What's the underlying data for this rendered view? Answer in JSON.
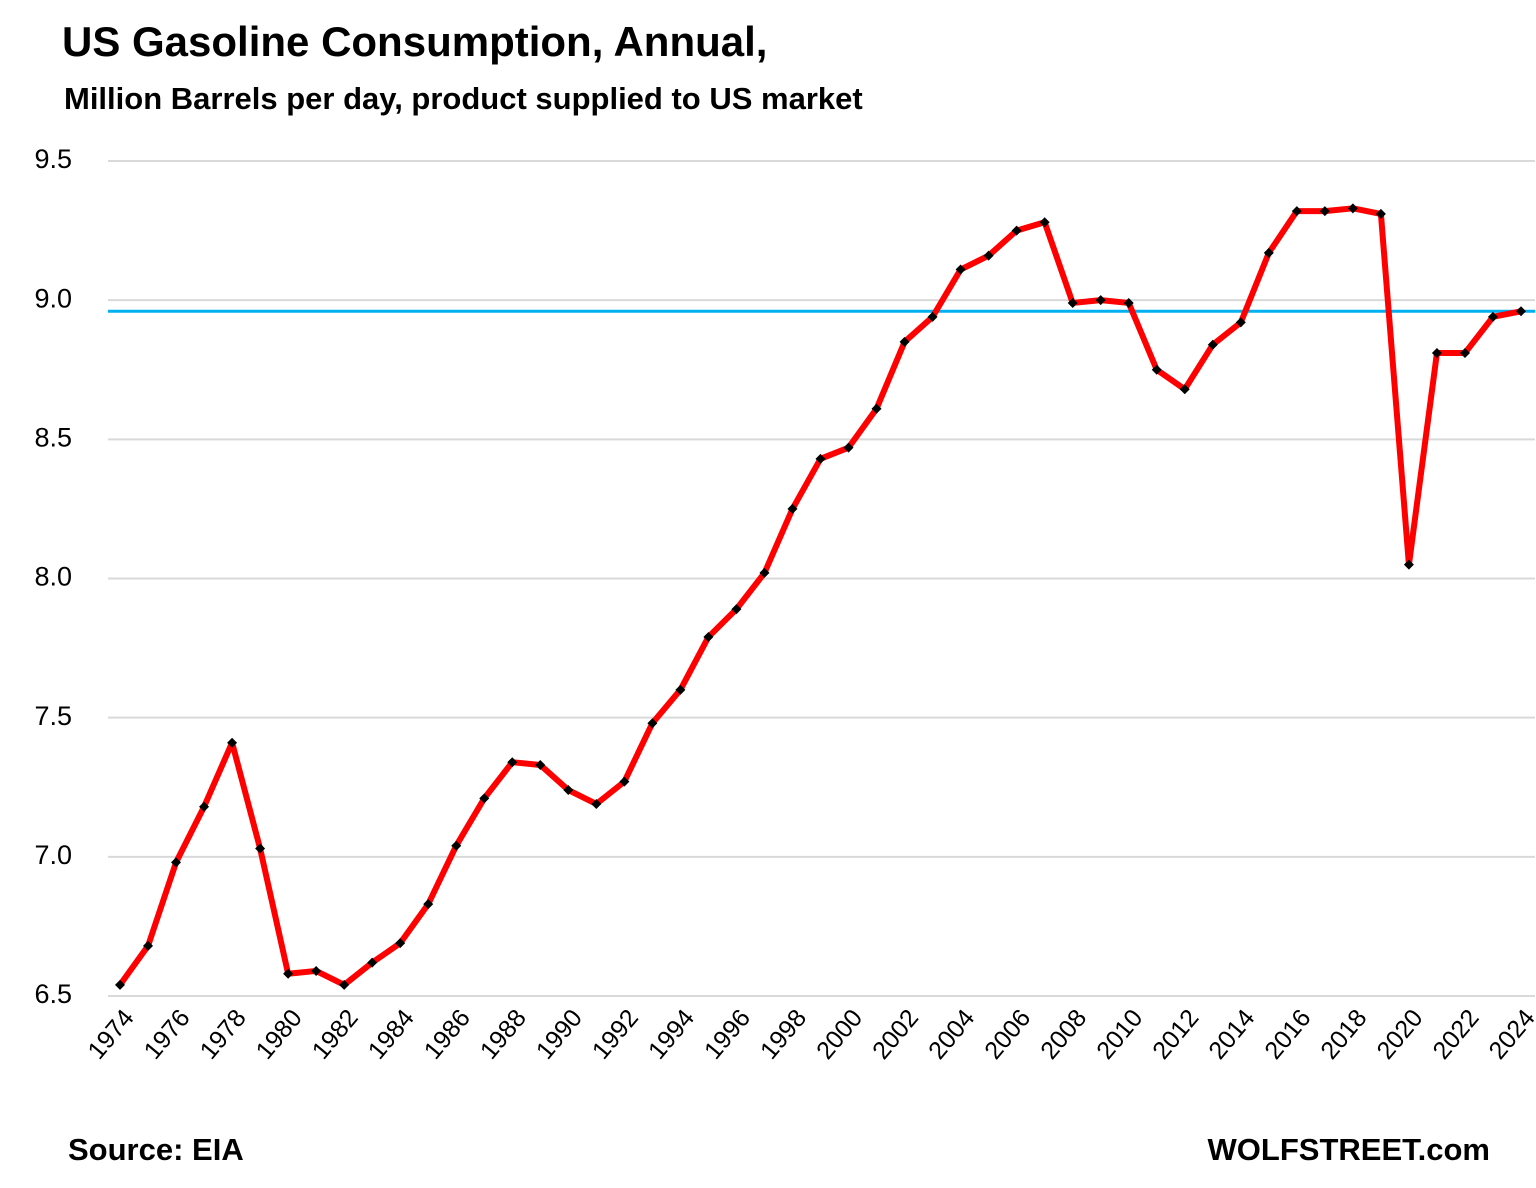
{
  "chart_data": {
    "type": "line",
    "title": "US Gasoline Consumption, Annual,",
    "subtitle": "Million  Barrels per day, product supplied to US market",
    "source": "Source: EIA",
    "watermark": "WOLFSTREET.com",
    "x": [
      1974,
      1975,
      1976,
      1977,
      1978,
      1979,
      1980,
      1981,
      1982,
      1983,
      1984,
      1985,
      1986,
      1987,
      1988,
      1989,
      1990,
      1991,
      1992,
      1993,
      1994,
      1995,
      1996,
      1997,
      1998,
      1999,
      2000,
      2001,
      2002,
      2003,
      2004,
      2005,
      2006,
      2007,
      2008,
      2009,
      2010,
      2011,
      2012,
      2013,
      2014,
      2015,
      2016,
      2017,
      2018,
      2019,
      2020,
      2021,
      2022,
      2023,
      2024
    ],
    "series": [
      {
        "name": "US gasoline consumption",
        "color": "#ff0000",
        "marker_color": "#000000",
        "values": [
          6.54,
          6.68,
          6.98,
          7.18,
          7.41,
          7.03,
          6.58,
          6.59,
          6.54,
          6.62,
          6.69,
          6.83,
          7.04,
          7.21,
          7.34,
          7.33,
          7.24,
          7.19,
          7.27,
          7.48,
          7.6,
          7.79,
          7.89,
          8.02,
          8.25,
          8.43,
          8.47,
          8.61,
          8.85,
          8.94,
          9.11,
          9.16,
          9.25,
          9.28,
          8.99,
          9.0,
          8.99,
          8.75,
          8.68,
          8.84,
          8.92,
          9.17,
          9.32,
          9.32,
          9.33,
          9.31,
          8.05,
          8.81,
          8.81,
          8.94,
          8.96
        ]
      }
    ],
    "reference_line": {
      "value": 8.96,
      "color": "#00b0f0"
    },
    "xlim": [
      1974,
      2024
    ],
    "xticks": [
      1974,
      1976,
      1978,
      1980,
      1982,
      1984,
      1986,
      1988,
      1990,
      1992,
      1994,
      1996,
      1998,
      2000,
      2002,
      2004,
      2006,
      2008,
      2010,
      2012,
      2014,
      2016,
      2018,
      2020,
      2022,
      2024
    ],
    "ylim": [
      6.5,
      9.5
    ],
    "yticks": [
      6.5,
      {
        "value": 7.0,
        "label": "7.0"
      },
      7.5,
      {
        "value": 8.0,
        "label": "8.0"
      },
      8.5,
      {
        "value": 9.0,
        "label": "9.0"
      },
      9.5
    ],
    "grid": true
  }
}
